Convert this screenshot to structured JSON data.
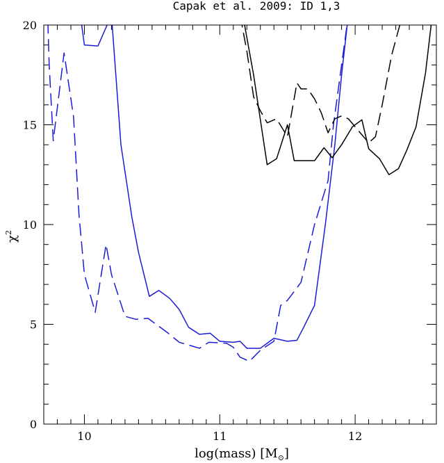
{
  "chart_data": {
    "type": "line",
    "title": "Capak et al. 2009: ID 1,3",
    "xlabel": "log(mass) [M",
    "xlabel_symbol": "⊙",
    "xlabel_close": "]",
    "ylabel": "χ",
    "ylabel_superscript": "2",
    "xlim": [
      9.7,
      12.6
    ],
    "ylim": [
      0,
      20
    ],
    "xticks_major": [
      10,
      11,
      12
    ],
    "xtick_labels": [
      "10",
      "11",
      "12"
    ],
    "yticks_major": [
      0,
      5,
      10,
      15,
      20
    ],
    "ytick_labels": [
      "0",
      "5",
      "10",
      "15",
      "20"
    ],
    "grid": false,
    "series": [
      {
        "color": "#1a1ad8",
        "style": "dashed",
        "points": [
          [
            9.73,
            20.2
          ],
          [
            9.74,
            18.0
          ],
          [
            9.77,
            14.2
          ],
          [
            9.85,
            18.6
          ],
          [
            9.92,
            15.4
          ],
          [
            9.96,
            10.5
          ],
          [
            10.0,
            7.5
          ],
          [
            10.08,
            5.6
          ],
          [
            10.16,
            9.0
          ],
          [
            10.2,
            7.5
          ],
          [
            10.3,
            5.4
          ],
          [
            10.38,
            5.25
          ],
          [
            10.47,
            5.3
          ],
          [
            10.62,
            4.55
          ],
          [
            10.7,
            4.1
          ],
          [
            10.85,
            3.8
          ],
          [
            10.92,
            4.1
          ],
          [
            11.05,
            4.05
          ],
          [
            11.1,
            3.85
          ],
          [
            11.15,
            3.35
          ],
          [
            11.22,
            3.15
          ],
          [
            11.3,
            3.7
          ],
          [
            11.4,
            4.15
          ],
          [
            11.45,
            5.95
          ],
          [
            11.5,
            6.2
          ],
          [
            11.6,
            7.1
          ],
          [
            11.7,
            10.0
          ],
          [
            11.8,
            12.2
          ],
          [
            11.84,
            15.0
          ],
          [
            11.9,
            18.0
          ],
          [
            11.95,
            20.5
          ]
        ]
      },
      {
        "color": "#1a1ad8",
        "style": "solid",
        "points": [
          [
            9.97,
            20.5
          ],
          [
            10.0,
            19.0
          ],
          [
            10.1,
            18.95
          ],
          [
            10.2,
            20.5
          ],
          [
            10.2,
            20.5
          ],
          [
            10.27,
            14.0
          ],
          [
            10.35,
            10.4
          ],
          [
            10.4,
            8.6
          ],
          [
            10.48,
            6.4
          ],
          [
            10.55,
            6.7
          ],
          [
            10.63,
            6.3
          ],
          [
            10.7,
            5.75
          ],
          [
            10.77,
            4.85
          ],
          [
            10.85,
            4.5
          ],
          [
            10.93,
            4.55
          ],
          [
            11.0,
            4.15
          ],
          [
            11.1,
            4.1
          ],
          [
            11.15,
            4.15
          ],
          [
            11.2,
            3.8
          ],
          [
            11.3,
            3.8
          ],
          [
            11.4,
            4.3
          ],
          [
            11.5,
            4.15
          ],
          [
            11.57,
            4.2
          ],
          [
            11.62,
            4.85
          ],
          [
            11.7,
            5.95
          ],
          [
            11.78,
            10.0
          ],
          [
            11.85,
            14.0
          ],
          [
            11.9,
            17.5
          ],
          [
            11.95,
            20.5
          ]
        ]
      },
      {
        "color": "#000000",
        "style": "dashed",
        "points": [
          [
            11.15,
            20.5
          ],
          [
            11.2,
            18.7
          ],
          [
            11.25,
            16.4
          ],
          [
            11.3,
            15.7
          ],
          [
            11.35,
            15.1
          ],
          [
            11.42,
            15.3
          ],
          [
            11.5,
            14.4
          ],
          [
            11.57,
            17.1
          ],
          [
            11.6,
            16.8
          ],
          [
            11.65,
            16.8
          ],
          [
            11.7,
            16.3
          ],
          [
            11.75,
            15.6
          ],
          [
            11.8,
            14.6
          ],
          [
            11.85,
            15.3
          ],
          [
            11.9,
            15.45
          ],
          [
            11.95,
            15.3
          ],
          [
            12.0,
            14.9
          ],
          [
            12.1,
            14.1
          ],
          [
            12.15,
            14.4
          ],
          [
            12.2,
            16.0
          ],
          [
            12.27,
            18.5
          ],
          [
            12.35,
            20.5
          ]
        ]
      },
      {
        "color": "#000000",
        "style": "solid",
        "points": [
          [
            11.17,
            20.5
          ],
          [
            11.25,
            17.5
          ],
          [
            11.35,
            13.0
          ],
          [
            11.42,
            13.3
          ],
          [
            11.5,
            15.0
          ],
          [
            11.55,
            13.2
          ],
          [
            11.63,
            13.2
          ],
          [
            11.7,
            13.2
          ],
          [
            11.77,
            13.85
          ],
          [
            11.83,
            13.35
          ],
          [
            11.9,
            14.0
          ],
          [
            11.98,
            14.9
          ],
          [
            12.05,
            15.25
          ],
          [
            12.1,
            13.8
          ],
          [
            12.18,
            13.3
          ],
          [
            12.25,
            12.5
          ],
          [
            12.32,
            12.8
          ],
          [
            12.38,
            13.7
          ],
          [
            12.45,
            14.9
          ],
          [
            12.52,
            17.6
          ],
          [
            12.57,
            20.5
          ]
        ]
      }
    ]
  }
}
